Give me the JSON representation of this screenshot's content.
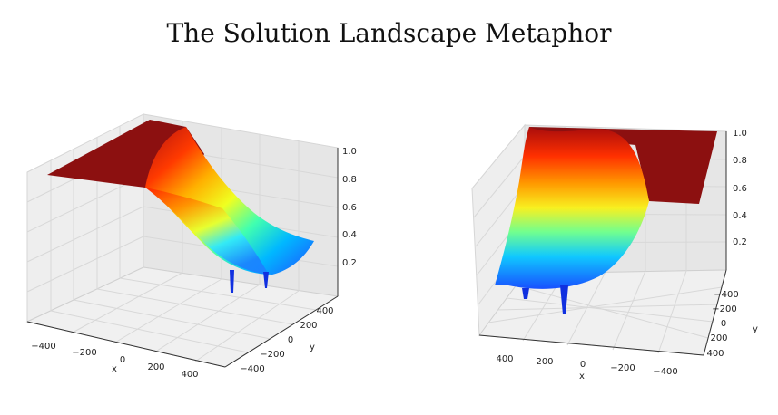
{
  "title": "The Solution Landscape Metaphor",
  "chart_data": [
    {
      "type": "surface",
      "view": "left",
      "xlabel": "x",
      "ylabel": "y",
      "x_ticks": [
        "−400",
        "−200",
        "0",
        "200",
        "400"
      ],
      "y_ticks": [
        "−400",
        "−200",
        "0",
        "200",
        "400"
      ],
      "z_ticks": [
        "0.2",
        "0.4",
        "0.6",
        "0.8",
        "1.0"
      ],
      "zlim": [
        0,
        1
      ],
      "colormap": "jet"
    },
    {
      "type": "surface",
      "view": "right",
      "xlabel": "x",
      "ylabel": "y",
      "x_ticks": [
        "400",
        "200",
        "0",
        "−200",
        "−400"
      ],
      "y_ticks": [
        "−400",
        "−200",
        "0",
        "200",
        "400"
      ],
      "z_ticks": [
        "0.2",
        "0.4",
        "0.6",
        "0.8",
        "1.0"
      ],
      "zlim": [
        0,
        1
      ],
      "colormap": "jet"
    }
  ]
}
